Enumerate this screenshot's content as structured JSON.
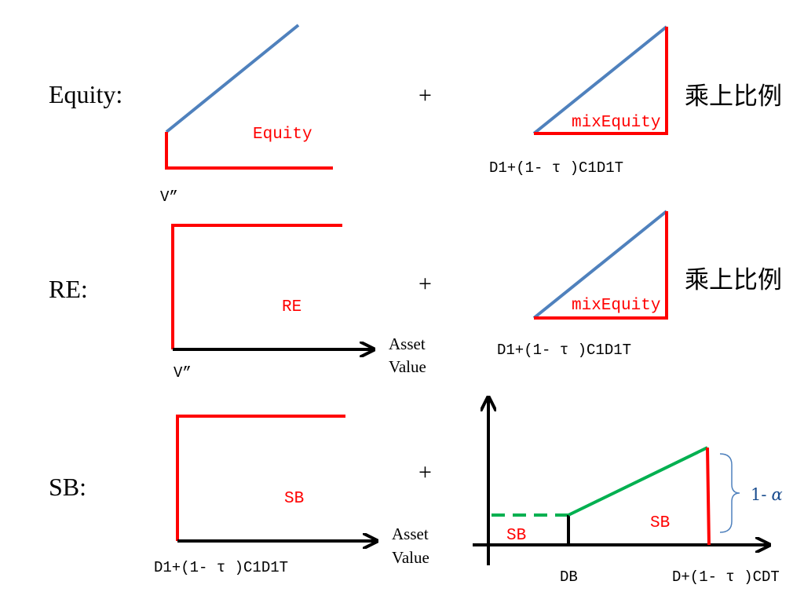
{
  "rows": {
    "equity": {
      "label": "Equity:",
      "payoff_label": "Equity",
      "threshold_label": "V”",
      "plus": "+",
      "addon_label": "mixEquity",
      "addon_threshold": "D1+(1- τ )C1D1T",
      "scale_note": "乘上比例"
    },
    "re": {
      "label": "RE:",
      "payoff_label": "RE",
      "threshold_label": "V”",
      "axis_label_line1": "Asset",
      "axis_label_line2": "Value",
      "plus": "+",
      "addon_label": "mixEquity",
      "addon_threshold": "D1+(1- τ )C1D1T",
      "scale_note": "乘上比例"
    },
    "sb": {
      "label": "SB:",
      "payoff_label": "SB",
      "threshold_label": "D1+(1- τ )C1D1T",
      "axis_label_line1": "Asset",
      "axis_label_line2": "Value",
      "plus": "+",
      "addon_left_label": "SB",
      "addon_right_label": "SB",
      "addon_db_label": "DB",
      "addon_threshold": "D+(1- τ )CDT",
      "addon_bracket_label": "1-",
      "addon_bracket_symbol": "α"
    }
  },
  "colors": {
    "payoff": "#ff0000",
    "upside": "#4f81bd",
    "sb_slope": "#00b050",
    "axis": "#000000"
  }
}
